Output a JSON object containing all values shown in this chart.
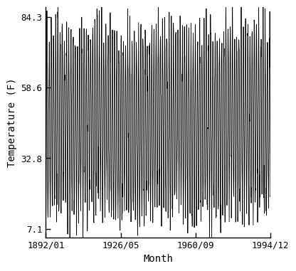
{
  "title": "",
  "xlabel": "Month",
  "ylabel": "Temperature (F)",
  "start_year": 1892,
  "start_month": 1,
  "end_year": 1994,
  "end_month": 12,
  "yticks": [
    7.1,
    32.8,
    58.6,
    84.3
  ],
  "xtick_labels": [
    "1892/01",
    "1926/05",
    "1960/09",
    "1994/12"
  ],
  "xtick_years": [
    1892.0,
    1926.333,
    1960.667,
    1994.917
  ],
  "ylim": [
    4.0,
    88.0
  ],
  "xlim_start": 1892.0,
  "xlim_end": 1995.0,
  "line_color": "#000000",
  "background_color": "#ffffff",
  "line_width": 0.6,
  "seasonal_amplitude": 32.0,
  "seasonal_mean": 46.0,
  "noise_std": 5.5,
  "inter_annual_std": 3.0,
  "seed": 12345
}
